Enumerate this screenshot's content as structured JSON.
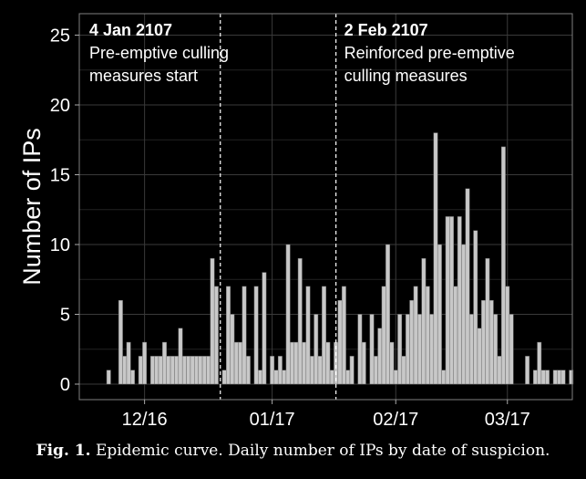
{
  "chart_data": {
    "type": "bar",
    "ylabel": "Number of IPs",
    "xlabel": "",
    "ylim": [
      0,
      26
    ],
    "yticks": [
      0,
      5,
      10,
      15,
      20,
      25
    ],
    "grid": true,
    "bar_color": "#c8c8c8",
    "background": "#000000",
    "x_start_date": "2106-12-01",
    "x_end_date": "2107-03-31",
    "xticks": [
      {
        "date": "2106-12-16",
        "label": "12/16"
      },
      {
        "date": "2107-01-17",
        "label": "01/17"
      },
      {
        "date": "2107-02-17",
        "label": "02/17"
      },
      {
        "date": "2107-03-17",
        "label": "03/17"
      }
    ],
    "annotations": [
      {
        "date": "2107-01-04",
        "title": "4 Jan 2107",
        "lines": [
          "Pre-emptive culling",
          "measures start"
        ]
      },
      {
        "date": "2107-02-02",
        "title": "2 Feb 2107",
        "lines": [
          "Reinforced pre-emptive",
          "culling measures"
        ]
      }
    ],
    "dates": [
      "2106-12-07",
      "2106-12-08",
      "2106-12-09",
      "2106-12-10",
      "2106-12-11",
      "2106-12-12",
      "2106-12-13",
      "2106-12-14",
      "2106-12-15",
      "2106-12-16",
      "2106-12-17",
      "2106-12-18",
      "2106-12-19",
      "2106-12-20",
      "2106-12-21",
      "2106-12-22",
      "2106-12-23",
      "2106-12-24",
      "2106-12-25",
      "2106-12-26",
      "2106-12-27",
      "2106-12-28",
      "2106-12-29",
      "2106-12-30",
      "2106-12-31",
      "2107-01-01",
      "2107-01-02",
      "2107-01-03",
      "2107-01-04",
      "2107-01-05",
      "2107-01-06",
      "2107-01-07",
      "2107-01-08",
      "2107-01-09",
      "2107-01-10",
      "2107-01-11",
      "2107-01-12",
      "2107-01-13",
      "2107-01-14",
      "2107-01-15",
      "2107-01-16",
      "2107-01-17",
      "2107-01-18",
      "2107-01-19",
      "2107-01-20",
      "2107-01-21",
      "2107-01-22",
      "2107-01-23",
      "2107-01-24",
      "2107-01-25",
      "2107-01-26",
      "2107-01-27",
      "2107-01-28",
      "2107-01-29",
      "2107-01-30",
      "2107-01-31",
      "2107-02-01",
      "2107-02-02",
      "2107-02-03",
      "2107-02-04",
      "2107-02-05",
      "2107-02-06",
      "2107-02-07",
      "2107-02-08",
      "2107-02-09",
      "2107-02-10",
      "2107-02-11",
      "2107-02-12",
      "2107-02-13",
      "2107-02-14",
      "2107-02-15",
      "2107-02-16",
      "2107-02-17",
      "2107-02-18",
      "2107-02-19",
      "2107-02-20",
      "2107-02-21",
      "2107-02-22",
      "2107-02-23",
      "2107-02-24",
      "2107-02-25",
      "2107-02-26",
      "2107-02-27",
      "2107-02-28",
      "2107-03-01",
      "2107-03-02",
      "2107-03-03",
      "2107-03-04",
      "2107-03-05",
      "2107-03-06",
      "2107-03-07",
      "2107-03-08",
      "2107-03-09",
      "2107-03-10",
      "2107-03-11",
      "2107-03-12",
      "2107-03-13",
      "2107-03-14",
      "2107-03-15",
      "2107-03-16",
      "2107-03-17",
      "2107-03-18",
      "2107-03-19",
      "2107-03-20",
      "2107-03-21",
      "2107-03-22",
      "2107-03-23",
      "2107-03-24",
      "2107-03-25",
      "2107-03-26",
      "2107-03-27",
      "2107-03-28",
      "2107-03-29",
      "2107-03-30",
      "2107-03-31",
      "2107-04-01",
      "2107-04-02",
      "2107-04-03"
    ],
    "values": [
      1,
      0,
      0,
      6,
      2,
      3,
      1,
      0,
      2,
      3,
      0,
      2,
      2,
      2,
      3,
      2,
      2,
      2,
      4,
      2,
      2,
      2,
      2,
      2,
      2,
      2,
      9,
      7,
      0,
      1,
      7,
      5,
      3,
      3,
      7,
      2,
      0,
      7,
      1,
      8,
      0,
      2,
      1,
      2,
      1,
      10,
      3,
      3,
      9,
      3,
      7,
      2,
      5,
      2,
      7,
      3,
      1,
      3,
      6,
      7,
      1,
      2,
      0,
      5,
      3,
      0,
      5,
      2,
      4,
      7,
      10,
      3,
      1,
      5,
      2,
      5,
      6,
      7,
      5,
      9,
      7,
      5,
      18,
      10,
      1,
      12,
      12,
      7,
      12,
      10,
      14,
      5,
      11,
      4,
      6,
      9,
      6,
      5,
      2,
      17,
      7,
      5,
      0,
      0,
      0,
      2,
      0,
      1,
      3,
      1,
      1,
      0,
      1,
      1,
      1,
      0,
      1,
      0
    ]
  },
  "caption": {
    "label": "Fig. 1.",
    "text": "Epidemic curve. Daily number of IPs by date of suspicion."
  }
}
